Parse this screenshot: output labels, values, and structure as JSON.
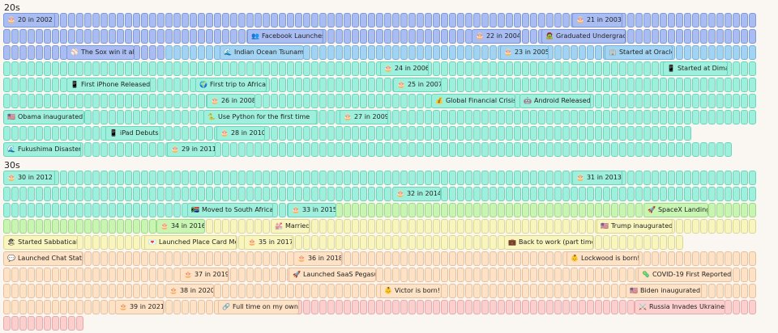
{
  "headings": [
    "20s",
    "30s"
  ],
  "events": [
    {
      "label": "20 in 2002",
      "icon": "🎂",
      "row": 0
    },
    {
      "label": "21 in 2003",
      "icon": "🎂",
      "row": 0
    },
    {
      "label": "Facebook Launches",
      "icon": "👥",
      "row": 1
    },
    {
      "label": "22 in 2004",
      "icon": "🎂",
      "row": 1
    },
    {
      "label": "Graduated Undergrad",
      "icon": "🧟",
      "row": 1
    },
    {
      "label": "The Sox win it all",
      "icon": "⚾",
      "row": 2
    },
    {
      "label": "Indian Ocean Tsunami",
      "icon": "🌊",
      "row": 2
    },
    {
      "label": "23 in 2005",
      "icon": "🎂",
      "row": 2
    },
    {
      "label": "Started at Oracle",
      "icon": "🏢",
      "row": 2
    },
    {
      "label": "24 in 2006",
      "icon": "🎂",
      "row": 3
    },
    {
      "label": "Started at Dimagi",
      "icon": "📱",
      "row": 3
    },
    {
      "label": "First iPhone Released",
      "icon": "📱",
      "row": 4
    },
    {
      "label": "First trip to Africa",
      "icon": "🌍",
      "row": 4
    },
    {
      "label": "25 in 2007",
      "icon": "🎂",
      "row": 4
    },
    {
      "label": "26 in 2008",
      "icon": "🎂",
      "row": 5
    },
    {
      "label": "Global Financial Crisis",
      "icon": "💰",
      "row": 5
    },
    {
      "label": "Android Released",
      "icon": "🤖",
      "row": 5
    },
    {
      "label": "Obama inaugurated",
      "icon": "🇺🇸",
      "row": 6
    },
    {
      "label": "Use Python for the first time",
      "icon": "🐍",
      "row": 6
    },
    {
      "label": "27 in 2009",
      "icon": "🎂",
      "row": 6
    },
    {
      "label": "iPad Debuts",
      "icon": "📱",
      "row": 7
    },
    {
      "label": "28 in 2010",
      "icon": "🎂",
      "row": 7
    },
    {
      "label": "Fukushima Disaster",
      "icon": "🌊",
      "row": 8
    },
    {
      "label": "29 in 2011",
      "icon": "🎂",
      "row": 8
    },
    {
      "label": "30 in 2012",
      "icon": "🎂",
      "row": 9
    },
    {
      "label": "31 in 2013",
      "icon": "🎂",
      "row": 9
    },
    {
      "label": "32 in 2014",
      "icon": "🎂",
      "row": 10
    },
    {
      "label": "Moved to South Africa",
      "icon": "🇿🇦",
      "row": 11
    },
    {
      "label": "33 in 2015",
      "icon": "🎂",
      "row": 11
    },
    {
      "label": "SpaceX Landing",
      "icon": "🚀",
      "row": 11
    },
    {
      "label": "34 in 2016",
      "icon": "🎂",
      "row": 12
    },
    {
      "label": "Married",
      "icon": "💒",
      "row": 12
    },
    {
      "label": "Trump inaugurated",
      "icon": "🇺🇸",
      "row": 12
    },
    {
      "label": "Started Sabbatical",
      "icon": "🏖",
      "row": 13
    },
    {
      "label": "Launched Place Card Me",
      "icon": "💌",
      "row": 13
    },
    {
      "label": "35 in 2017",
      "icon": "🎂",
      "row": 13
    },
    {
      "label": "Back to work (part time)",
      "icon": "💼",
      "row": 13
    },
    {
      "label": "Launched Chat Stats",
      "icon": "💬",
      "row": 14
    },
    {
      "label": "36 in 2018",
      "icon": "🎂",
      "row": 14
    },
    {
      "label": "Lockwood is born!",
      "icon": "👶",
      "row": 14
    },
    {
      "label": "37 in 2019",
      "icon": "🎂",
      "row": 15
    },
    {
      "label": "Launched SaaS Pegasus",
      "icon": "🚀",
      "row": 15
    },
    {
      "label": "COVID-19 First Reported",
      "icon": "🦠",
      "row": 15
    },
    {
      "label": "38 in 2020",
      "icon": "🎂",
      "row": 16
    },
    {
      "label": "Victor is born!",
      "icon": "👶",
      "row": 16
    },
    {
      "label": "Biden inaugurated",
      "icon": "🇺🇸",
      "row": 16
    },
    {
      "label": "39 in 2021",
      "icon": "🎂",
      "row": 17
    },
    {
      "label": "Full time on my own",
      "icon": "🔗",
      "row": 17
    },
    {
      "label": "Russia Invades Ukraine",
      "icon": "⚔️",
      "row": 17
    }
  ],
  "colors": {
    "background": "#faf7f2",
    "blue": "#a9bdf2",
    "lightblue": "#a2d3f2",
    "aqua": "#9ef0dd",
    "mint": "#a6f0c8",
    "lime": "#c8f5b2",
    "yellow": "#f8f5bf",
    "peach": "#fde2c5",
    "pink": "#fccfcf"
  }
}
